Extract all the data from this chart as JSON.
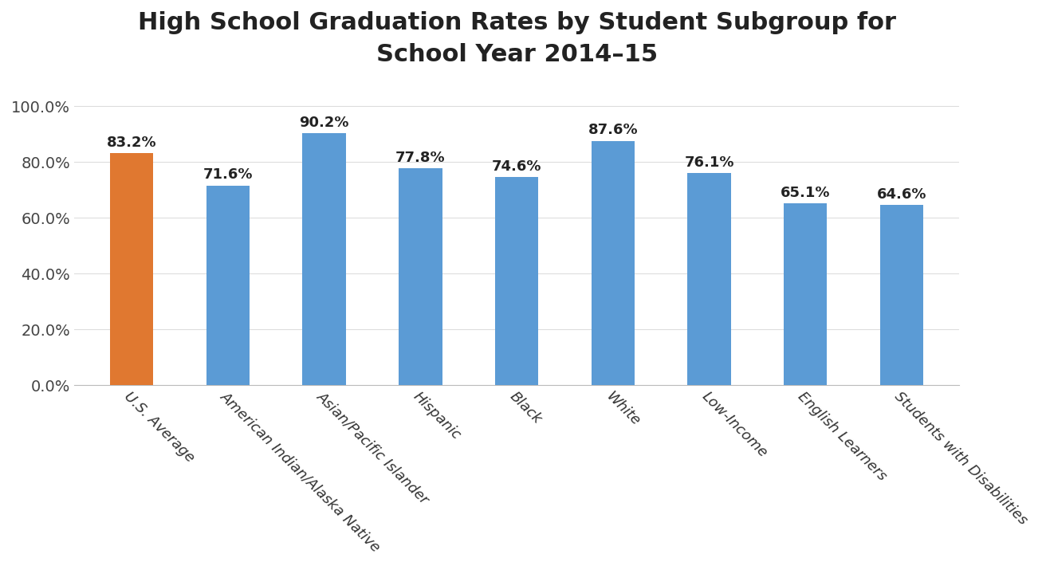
{
  "title": "High School Graduation Rates by Student Subgroup for\nSchool Year 2014–15",
  "categories": [
    "U.S. Average",
    "American Indian/Alaska Native",
    "Asian/Pacific Islander",
    "Hispanic",
    "Black",
    "White",
    "Low-Income",
    "English Learners",
    "Students with Disabilities"
  ],
  "values": [
    83.2,
    71.6,
    90.2,
    77.8,
    74.6,
    87.6,
    76.1,
    65.1,
    64.6
  ],
  "bar_colors": [
    "#E07830",
    "#5B9BD5",
    "#5B9BD5",
    "#5B9BD5",
    "#5B9BD5",
    "#5B9BD5",
    "#5B9BD5",
    "#5B9BD5",
    "#5B9BD5"
  ],
  "ylim": [
    0,
    108
  ],
  "yticks": [
    0,
    20,
    40,
    60,
    80,
    100
  ],
  "ytick_labels": [
    "0.0%",
    "20.0%",
    "40.0%",
    "60.0%",
    "80.0%",
    "100.0%"
  ],
  "title_fontsize": 22,
  "label_fontsize": 13,
  "value_fontsize": 13,
  "background_color": "#FFFFFF",
  "grid_color": "#DDDDDD",
  "bar_width": 0.45
}
